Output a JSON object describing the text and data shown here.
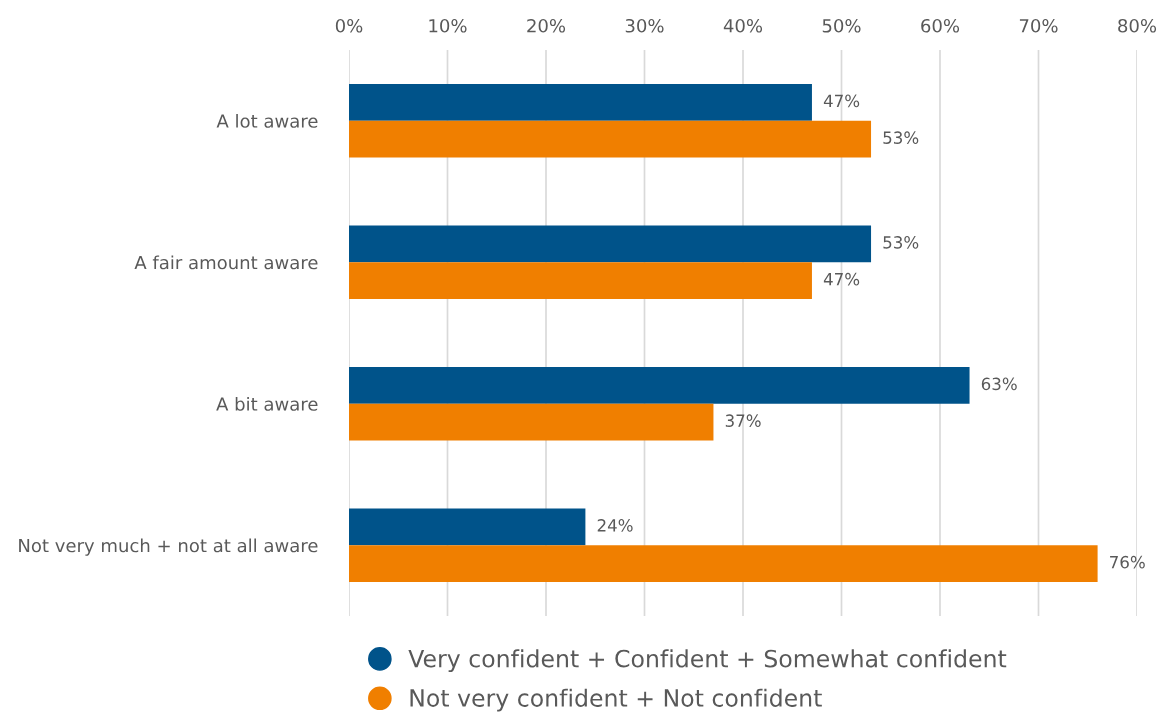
{
  "chart_data": {
    "type": "bar",
    "orientation": "horizontal",
    "categories": [
      "A lot aware",
      "A fair amount aware",
      "A bit aware",
      "Not very much + not at all aware"
    ],
    "series": [
      {
        "name": "Very confident + Confident + Somewhat confident",
        "color": "#00538a",
        "values": [
          47,
          53,
          63,
          24
        ],
        "value_labels": [
          "47%",
          "53%",
          "63%",
          "24%"
        ]
      },
      {
        "name": "Not very confident + Not confident",
        "color": "#f07f00",
        "values": [
          53,
          47,
          37,
          76
        ],
        "value_labels": [
          "53%",
          "47%",
          "37%",
          "76%"
        ]
      }
    ],
    "xlim": [
      0,
      80
    ],
    "xticks": [
      {
        "value": 0,
        "label": "0%"
      },
      {
        "value": 10,
        "label": "10%"
      },
      {
        "value": 20,
        "label": "20%"
      },
      {
        "value": 30,
        "label": "30%"
      },
      {
        "value": 40,
        "label": "40%"
      },
      {
        "value": 50,
        "label": "50%"
      },
      {
        "value": 60,
        "label": "60%"
      },
      {
        "value": 70,
        "label": "70%"
      },
      {
        "value": 80,
        "label": "80%"
      }
    ],
    "grid": "x",
    "legend": "bottom",
    "marker": "circle"
  }
}
